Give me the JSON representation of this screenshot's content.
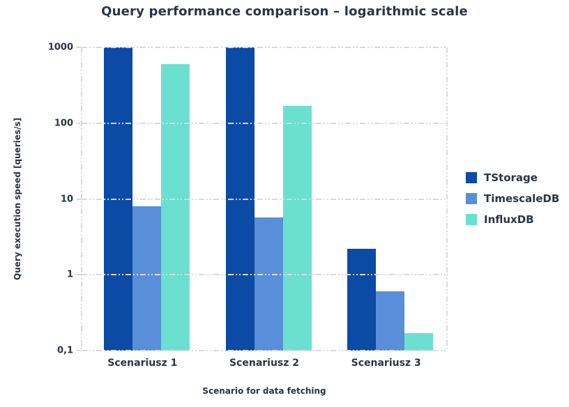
{
  "chart_data": {
    "type": "bar",
    "yscale": "log",
    "title": "Query performance comparison – logarithmic scale",
    "xlabel": "Scenario for data fetching",
    "ylabel": "Query execution speed [queries/s]",
    "categories": [
      "Scenariusz 1",
      "Scenariusz 2",
      "Scenariusz 3"
    ],
    "series": [
      {
        "name": "TStorage",
        "color": "#0B4AA5",
        "values": [
          1000,
          1000,
          2.2
        ]
      },
      {
        "name": "TimescaleDB",
        "color": "#588FD8",
        "values": [
          8,
          5.7,
          0.6
        ]
      },
      {
        "name": "InfluxDB",
        "color": "#6BE0D0",
        "values": [
          600,
          170,
          0.17
        ]
      }
    ],
    "ylim": [
      0.1,
      1000
    ],
    "ytick_labels": [
      "1000",
      "100",
      "10",
      "1",
      "0,1"
    ],
    "grid": "horizontal-dashed",
    "legend_position": "right"
  },
  "colors": {
    "background": "#FFFFFF",
    "text": "#2B3445",
    "gridline": "#D6D9DF"
  }
}
